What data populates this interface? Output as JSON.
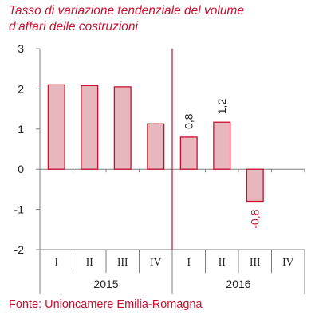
{
  "title_line1": "Tasso di variazione tendenziale del volume",
  "title_line2": "d’affari delle costruzioni",
  "source": "Fonte: Unioncamere Emilia-Romagna",
  "colors": {
    "accent": "#c8102e",
    "bar_fill": "#e7b7bd",
    "bar_stroke": "#c8102e",
    "axis": "#7f7f7f",
    "divider": "#c8102e"
  },
  "chart_data": {
    "type": "bar",
    "categories": [
      "I",
      "II",
      "III",
      "IV",
      "I",
      "II",
      "III",
      "IV"
    ],
    "groups": [
      {
        "label": "2015",
        "count": 4
      },
      {
        "label": "2016",
        "count": 4
      }
    ],
    "series": [
      {
        "values": [
          2.1,
          2.08,
          2.05,
          1.13,
          0.8,
          1.17,
          -0.8,
          null
        ]
      }
    ],
    "data_labels": [
      null,
      null,
      null,
      null,
      "0,8",
      "1,2",
      "-0,8",
      null
    ],
    "y_ticks": [
      3,
      2,
      1,
      0,
      -1,
      -2
    ],
    "ylim": [
      -2,
      3
    ],
    "grid": false
  }
}
